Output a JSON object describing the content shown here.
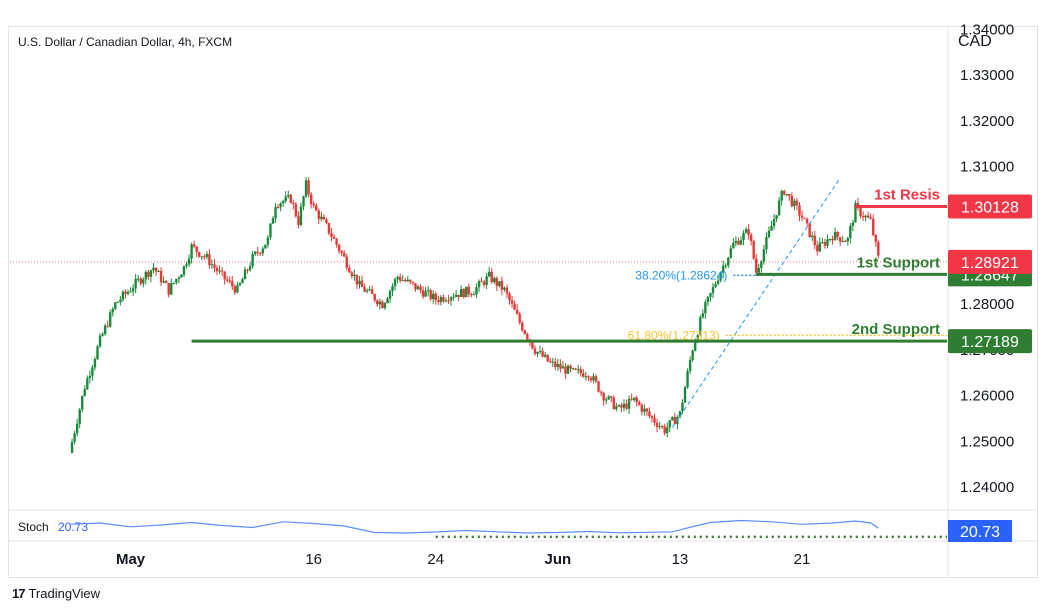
{
  "header": {
    "title": "U.S. Dollar / Canadian Dollar, 4h, FXCM",
    "currency": "CAD"
  },
  "footer": {
    "brand": "TradingView"
  },
  "chart_data": {
    "type": "candlestick",
    "title": "U.S. Dollar / Canadian Dollar, 4h, FXCM",
    "ylabel": "CAD",
    "ylim": [
      1.235,
      1.3405
    ],
    "y_ticks": [
      "1.34000",
      "1.33000",
      "1.32000",
      "1.31000",
      "1.28000",
      "1.27000",
      "1.26000",
      "1.25000",
      "1.24000"
    ],
    "x_ticks": [
      "May",
      "16",
      "24",
      "Jun",
      "13",
      "21"
    ],
    "x_tick_positions": [
      4,
      16,
      24,
      32,
      40,
      48
    ],
    "x_range": [
      -3.9,
      57.5
    ],
    "price_path": [
      [
        0.0,
        1.2475
      ],
      [
        1.0,
        1.262
      ],
      [
        2.0,
        1.272
      ],
      [
        3.0,
        1.28
      ],
      [
        4.5,
        1.285
      ],
      [
        5.5,
        1.288
      ],
      [
        6.5,
        1.283
      ],
      [
        7.5,
        1.288
      ],
      [
        8.0,
        1.2925
      ],
      [
        9.0,
        1.29
      ],
      [
        10.0,
        1.286
      ],
      [
        11.0,
        1.283
      ],
      [
        12.0,
        1.29
      ],
      [
        13.0,
        1.294
      ],
      [
        13.5,
        1.302
      ],
      [
        14.5,
        1.303
      ],
      [
        15.0,
        1.298
      ],
      [
        15.5,
        1.306
      ],
      [
        16.0,
        1.301
      ],
      [
        17.0,
        1.296
      ],
      [
        18.0,
        1.29
      ],
      [
        19.0,
        1.284
      ],
      [
        20.5,
        1.28
      ],
      [
        21.5,
        1.286
      ],
      [
        23.0,
        1.283
      ],
      [
        24.0,
        1.281
      ],
      [
        25.0,
        1.282
      ],
      [
        26.5,
        1.283
      ],
      [
        27.5,
        1.286
      ],
      [
        28.5,
        1.283
      ],
      [
        29.5,
        1.276
      ],
      [
        30.5,
        1.27
      ],
      [
        31.5,
        1.267
      ],
      [
        33.0,
        1.265
      ],
      [
        34.0,
        1.265
      ],
      [
        35.0,
        1.26
      ],
      [
        36.0,
        1.257
      ],
      [
        37.0,
        1.259
      ],
      [
        38.0,
        1.2555
      ],
      [
        39.0,
        1.2525
      ],
      [
        40.0,
        1.256
      ],
      [
        40.8,
        1.27
      ],
      [
        41.5,
        1.278
      ],
      [
        42.5,
        1.286
      ],
      [
        43.5,
        1.293
      ],
      [
        44.5,
        1.296
      ],
      [
        45.0,
        1.287
      ],
      [
        46.0,
        1.297
      ],
      [
        46.8,
        1.305
      ],
      [
        48.0,
        1.299
      ],
      [
        49.0,
        1.292
      ],
      [
        50.0,
        1.295
      ],
      [
        51.0,
        1.294
      ],
      [
        51.5,
        1.301
      ],
      [
        52.5,
        1.298
      ],
      [
        53.0,
        1.29
      ]
    ],
    "levels": [
      {
        "name": "1st Resis",
        "price": 1.30128,
        "label": "1.30128",
        "color": "#f23645",
        "from": 51.5
      },
      {
        "name": "1st Support",
        "price": 1.28647,
        "label": "1.28647",
        "color": "#2e7d32",
        "from": 45.0
      },
      {
        "name": "2nd Support",
        "price": 1.27189,
        "label": "1.27189",
        "color": "#2e7d32",
        "from": 8.0
      },
      {
        "name": "current",
        "price": 1.28921,
        "label": "1.28921",
        "color": "#f23645"
      }
    ],
    "fibonacci": [
      {
        "label": "38.20%(1.28624)",
        "price": 1.28624,
        "color": "#2196f3",
        "from": 43.5,
        "to": 45.6
      },
      {
        "label": "61.80%(1.27313)",
        "price": 1.27313,
        "color": "#fbc02d",
        "from": 43.0,
        "to": 57.5
      }
    ],
    "trendline": {
      "from": [
        39.5,
        1.253
      ],
      "to": [
        50.5,
        1.3075
      ],
      "color": "#2196f3"
    },
    "stochastic": {
      "label": "Stoch",
      "value": "20.73",
      "color": "#2962ff",
      "ylim": [
        0,
        100
      ],
      "support_level": 20.73,
      "series": [
        [
          0,
          55
        ],
        [
          2,
          60
        ],
        [
          4,
          45
        ],
        [
          6,
          52
        ],
        [
          8,
          62
        ],
        [
          10,
          50
        ],
        [
          12,
          42
        ],
        [
          14,
          65
        ],
        [
          16,
          58
        ],
        [
          18,
          48
        ],
        [
          20,
          22
        ],
        [
          22,
          20
        ],
        [
          24,
          24
        ],
        [
          26,
          30
        ],
        [
          28,
          25
        ],
        [
          30,
          20
        ],
        [
          32,
          22
        ],
        [
          34,
          26
        ],
        [
          36,
          21
        ],
        [
          38,
          23
        ],
        [
          39.5,
          25
        ],
        [
          41,
          48
        ],
        [
          42,
          62
        ],
        [
          44,
          70
        ],
        [
          46,
          65
        ],
        [
          48,
          55
        ],
        [
          50,
          60
        ],
        [
          51.5,
          68
        ],
        [
          52.5,
          60
        ],
        [
          53,
          40
        ]
      ]
    }
  }
}
